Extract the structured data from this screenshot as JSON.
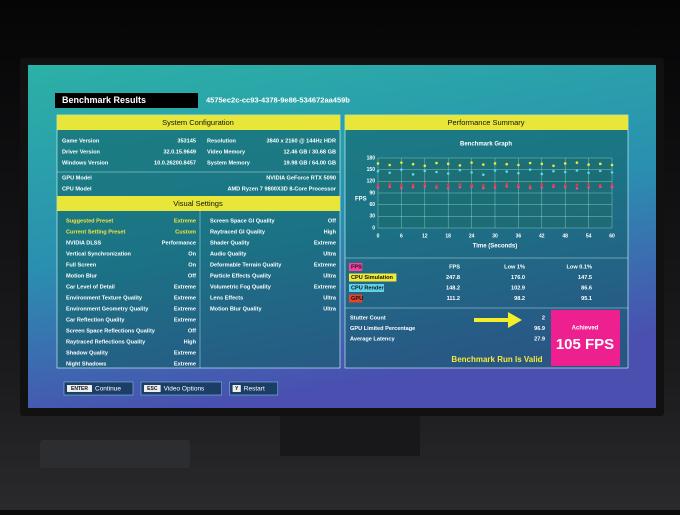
{
  "header": {
    "title": "Benchmark Results",
    "run_id": "4575ec2c-cc93-4378-9e86-534672aa459b"
  },
  "system_configuration": {
    "title": "System Configuration",
    "left": [
      [
        "Game Version",
        "353145"
      ],
      [
        "Driver Version",
        "32.0.15.9649"
      ],
      [
        "Windows Version",
        "10.0.26200.8457"
      ]
    ],
    "right": [
      [
        "Resolution",
        "3840 x 2160 @ 144Hz HDR"
      ],
      [
        "Video Memory",
        "12.46 GB / 30.68 GB"
      ],
      [
        "System Memory",
        "19.98 GB / 64.00 GB"
      ]
    ],
    "hardware": [
      [
        "GPU Model",
        "NVIDIA GeForce RTX 5090"
      ],
      [
        "CPU Model",
        "AMD Ryzen 7 9800X3D 8-Core Processor"
      ]
    ]
  },
  "visual_settings": {
    "title": "Visual Settings",
    "left": [
      [
        "Suggested Preset",
        "Extreme"
      ],
      [
        "Current Setting Preset",
        "Custom"
      ],
      [
        "NVIDIA DLSS",
        "Performance"
      ],
      [
        "Vertical Synchronization",
        "On"
      ],
      [
        "Full Screen",
        "On"
      ],
      [
        "Motion Blur",
        "Off"
      ],
      [
        "Car Level of Detail",
        "Extreme"
      ],
      [
        "Environment Texture Quality",
        "Extreme"
      ],
      [
        "Environment Geometry Quality",
        "Extreme"
      ],
      [
        "Car Reflection Quality",
        "Extreme"
      ],
      [
        "Screen Space Reflections Quality",
        "Off"
      ],
      [
        "Raytraced Reflections Quality",
        "High"
      ],
      [
        "Shadow Quality",
        "Extreme"
      ],
      [
        "Night Shadows",
        "Extreme"
      ]
    ],
    "right": [
      [
        "Screen Space GI Quality",
        "Off"
      ],
      [
        "Raytraced GI Quality",
        "High"
      ],
      [
        "Shader Quality",
        "Extreme"
      ],
      [
        "Audio Quality",
        "Ultra"
      ],
      [
        "Deformable Terrain Quality",
        "Extreme"
      ],
      [
        "Particle Effects Quality",
        "Ultra"
      ],
      [
        "Volumetric Fog Quality",
        "Extreme"
      ],
      [
        "Lens Effects",
        "Ultra"
      ],
      [
        "Motion Blur Quality",
        "Ultra"
      ]
    ]
  },
  "performance_summary": {
    "title": "Performance Summary",
    "graph": {
      "type": "scatter",
      "title": "Benchmark Graph",
      "x_label": "Time (Seconds)",
      "y_label": "FPS",
      "xlim": [
        0,
        60
      ],
      "ylim": [
        0,
        180
      ],
      "xticks": [
        0,
        6,
        12,
        18,
        24,
        30,
        36,
        42,
        48,
        54,
        60
      ],
      "yticks": [
        0,
        30,
        60,
        90,
        120,
        150,
        180
      ],
      "x": [
        0,
        3,
        6,
        9,
        12,
        15,
        18,
        21,
        24,
        27,
        30,
        33,
        36,
        39,
        42,
        45,
        48,
        51,
        54,
        57,
        60
      ],
      "series": [
        {
          "name": "FPS",
          "color": "#ff3fa0",
          "values": [
            104,
            106,
            103,
            105,
            107,
            104,
            102,
            105,
            106,
            103,
            104,
            107,
            105,
            103,
            104,
            106,
            105,
            102,
            104,
            106,
            105
          ]
        },
        {
          "name": "CPU Simulation",
          "color": "#f2ea3a",
          "values": [
            166,
            162,
            168,
            164,
            160,
            167,
            165,
            161,
            168,
            163,
            166,
            164,
            162,
            167,
            165,
            160,
            166,
            168,
            163,
            165,
            162
          ]
        },
        {
          "name": "CPU Render",
          "color": "#5fd3ea",
          "values": [
            146,
            142,
            150,
            138,
            147,
            144,
            140,
            149,
            143,
            137,
            148,
            145,
            141,
            150,
            139,
            146,
            144,
            148,
            142,
            147,
            143
          ]
        },
        {
          "name": "GPU",
          "color": "#e8402a",
          "values": [
            110,
            112,
            109,
            111,
            113,
            108,
            110,
            112,
            111,
            109,
            110,
            113,
            111,
            108,
            112,
            110,
            109,
            111,
            112,
            110,
            111
          ]
        }
      ]
    },
    "table": {
      "columns": [
        "FPS",
        "Low 1%",
        "Low 0.1%"
      ],
      "rows": [
        [
          "247.8",
          "176.0",
          "147.5"
        ],
        [
          "148.2",
          "102.9",
          "86.6"
        ],
        [
          "111.2",
          "98.2",
          "95.1"
        ]
      ]
    },
    "stats": [
      [
        "Stutter Count",
        "2"
      ],
      [
        "GPU Limited Percentage",
        "96.9"
      ],
      [
        "Average Latency",
        "27.9"
      ]
    ],
    "validity": "Benchmark Run Is Valid",
    "achieved": {
      "label": "Achieved",
      "value": "105 FPS"
    }
  },
  "footer": {
    "buttons": [
      [
        "ENTER",
        "Continue"
      ],
      [
        "ESC",
        "Video Options"
      ],
      [
        "Y",
        "Restart"
      ]
    ]
  }
}
